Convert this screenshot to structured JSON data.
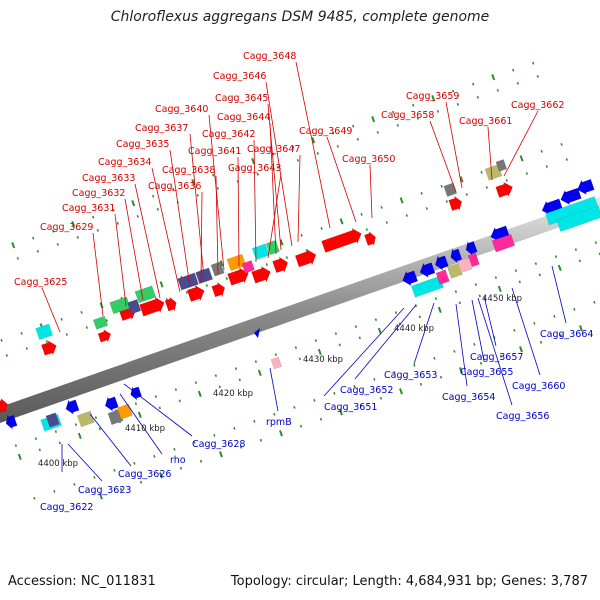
{
  "title": "Chloroflexus aggregans DSM 9485, complete genome",
  "footer": {
    "accession": "Accession: NC_011831",
    "topology": "Topology: circular; Length: 4,684,931 bp; Genes: 3,787"
  },
  "colors": {
    "plus_strand_label": "#d40000",
    "minus_strand_label": "#0000c8",
    "backbone": "#888888",
    "tick": "#2e8b2e",
    "gene_red": "#ff0000",
    "gene_blue": "#0000ee",
    "gene_cyan": "#00e6e6",
    "gene_green": "#33cc66",
    "gene_navy": "#4a4a8c",
    "gene_orange": "#ff9900",
    "gene_magenta": "#ff2a9a",
    "gene_khaki": "#bdb76b",
    "gene_gray": "#777777",
    "gene_pink": "#ffb0c0"
  },
  "scale_labels": [
    "4400 kbp",
    "4410 kbp",
    "4420 kbp",
    "4430 kbp",
    "4440 kbp",
    "4450 kbp"
  ],
  "plus_labels": [
    "Cagg_3625",
    "Cagg_3629",
    "Cagg_3631",
    "Cagg_3632",
    "Cagg_3633",
    "Cagg_3634",
    "Cagg_3635",
    "Cagg_3636",
    "Cagg_3637",
    "Cagg_3638",
    "Cagg_3640",
    "Cagg_3641",
    "Cagg_3642",
    "Cagg_3643",
    "Cagg_3644",
    "Cagg_3645",
    "Cagg_3646",
    "Cagg_3647",
    "Cagg_3648",
    "Cagg_3649",
    "Cagg_3650",
    "Cagg_3658",
    "Cagg_3659",
    "Cagg_3661",
    "Cagg_3662"
  ],
  "minus_labels": [
    "Cagg_3622",
    "Cagg_3623",
    "Cagg_3626",
    "rho",
    "Cagg_3628",
    "rpmB",
    "Cagg_3651",
    "Cagg_3652",
    "Cagg_3653",
    "Cagg_3654",
    "Cagg_3655",
    "Cagg_3656",
    "Cagg_3657",
    "Cagg_3660",
    "Cagg_3664"
  ]
}
